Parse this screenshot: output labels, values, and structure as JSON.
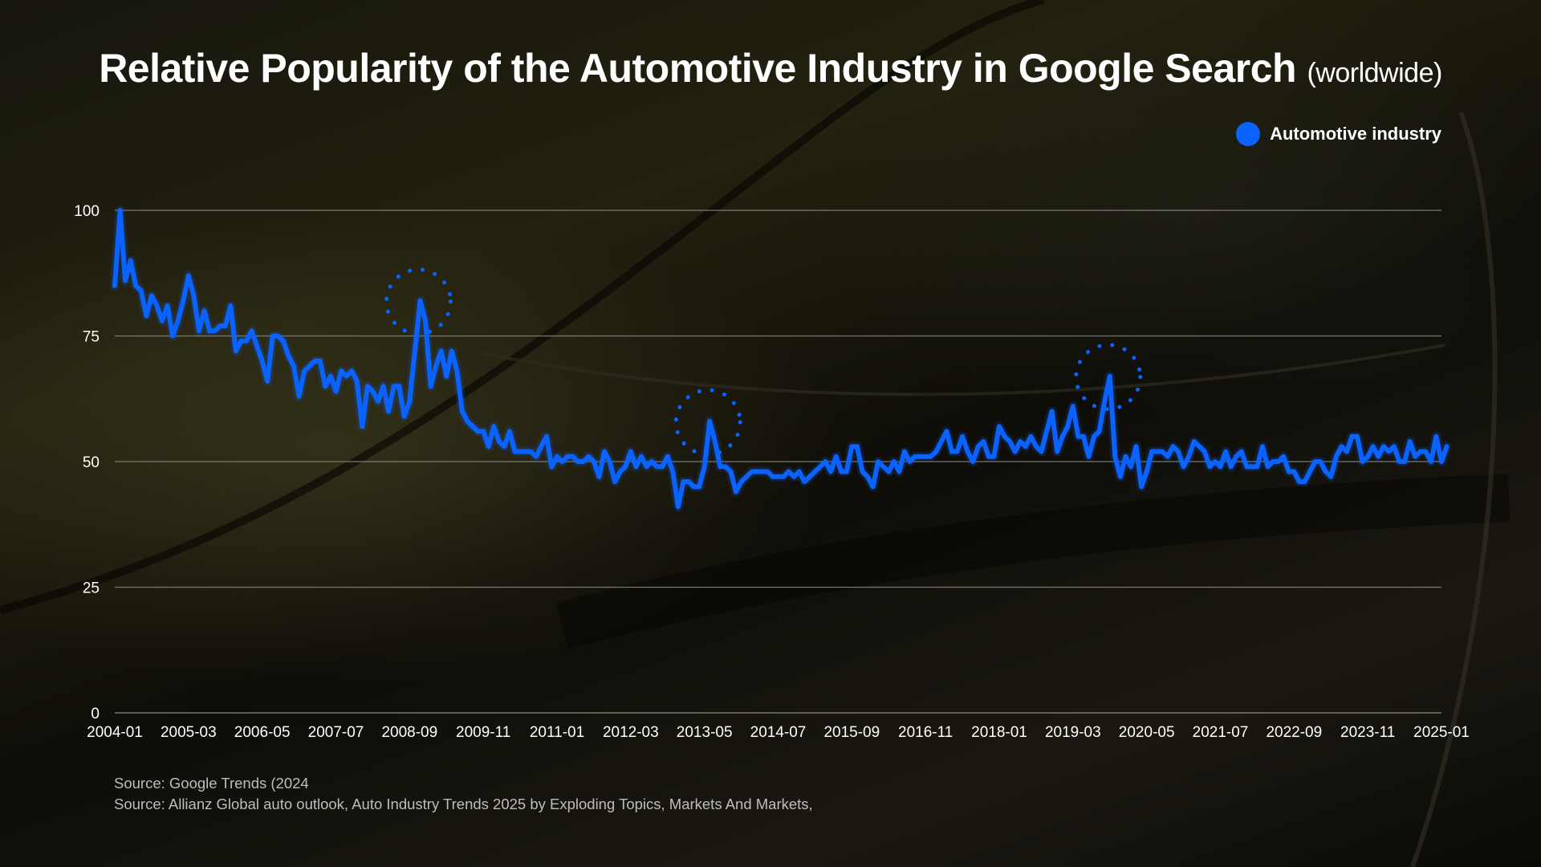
{
  "title": {
    "main": "Relative Popularity of the Automotive Industry in Google Search",
    "suffix": "(worldwide)"
  },
  "legend": {
    "label": "Automotive industry"
  },
  "colors": {
    "series": "#0a63ff",
    "grid": "#8a8a80",
    "text": "#ffffff"
  },
  "sources": [
    "Source: Google Trends (2024",
    "Source: Allianz Global auto outlook, Auto Industry Trends 2025 by Exploding Topics, Markets And Markets,"
  ],
  "chart_data": {
    "type": "line",
    "title": "Relative Popularity of the Automotive Industry in Google Search (worldwide)",
    "xlabel": "",
    "ylabel": "",
    "ylim": [
      0,
      100
    ],
    "grid": true,
    "legend_position": "top-right",
    "yticks": [
      0,
      25,
      50,
      75,
      100
    ],
    "x_ticks": [
      "2004-01",
      "2005-03",
      "2006-05",
      "2007-07",
      "2008-09",
      "2009-11",
      "2011-01",
      "2012-03",
      "2013-05",
      "2014-07",
      "2015-09",
      "2016-11",
      "2018-01",
      "2019-03",
      "2020-05",
      "2021-07",
      "2022-09",
      "2023-11",
      "2025-01"
    ],
    "x_range": [
      "2004-01",
      "2025-01"
    ],
    "series": [
      {
        "name": "Automotive industry",
        "points": [
          [
            "2004-01",
            85
          ],
          [
            "2004-02",
            100
          ],
          [
            "2004-03",
            86
          ],
          [
            "2004-04",
            90
          ],
          [
            "2004-05",
            85
          ],
          [
            "2004-06",
            84
          ],
          [
            "2004-07",
            79
          ],
          [
            "2004-08",
            83
          ],
          [
            "2004-09",
            81
          ],
          [
            "2004-10",
            78
          ],
          [
            "2004-11",
            81
          ],
          [
            "2004-12",
            75
          ],
          [
            "2005-01",
            78
          ],
          [
            "2005-02",
            82
          ],
          [
            "2005-03",
            87
          ],
          [
            "2005-04",
            83
          ],
          [
            "2005-05",
            76
          ],
          [
            "2005-06",
            80
          ],
          [
            "2005-07",
            76
          ],
          [
            "2005-08",
            76
          ],
          [
            "2005-09",
            77
          ],
          [
            "2005-10",
            77
          ],
          [
            "2005-11",
            81
          ],
          [
            "2005-12",
            72
          ],
          [
            "2006-01",
            74
          ],
          [
            "2006-02",
            74
          ],
          [
            "2006-03",
            76
          ],
          [
            "2006-04",
            73
          ],
          [
            "2006-05",
            70
          ],
          [
            "2006-06",
            66
          ],
          [
            "2006-07",
            75
          ],
          [
            "2006-08",
            75
          ],
          [
            "2006-09",
            74
          ],
          [
            "2006-10",
            71
          ],
          [
            "2006-11",
            69
          ],
          [
            "2006-12",
            63
          ],
          [
            "2007-01",
            68
          ],
          [
            "2007-02",
            69
          ],
          [
            "2007-03",
            70
          ],
          [
            "2007-04",
            70
          ],
          [
            "2007-05",
            65
          ],
          [
            "2007-06",
            67
          ],
          [
            "2007-07",
            64
          ],
          [
            "2007-08",
            68
          ],
          [
            "2007-09",
            67
          ],
          [
            "2007-10",
            68
          ],
          [
            "2007-11",
            66
          ],
          [
            "2007-12",
            57
          ],
          [
            "2008-01",
            65
          ],
          [
            "2008-02",
            64
          ],
          [
            "2008-03",
            62
          ],
          [
            "2008-04",
            65
          ],
          [
            "2008-05",
            60
          ],
          [
            "2008-06",
            65
          ],
          [
            "2008-07",
            65
          ],
          [
            "2008-08",
            59
          ],
          [
            "2008-09",
            62
          ],
          [
            "2008-10",
            72
          ],
          [
            "2008-11",
            82
          ],
          [
            "2008-12",
            78
          ],
          [
            "2009-01",
            65
          ],
          [
            "2009-02",
            69
          ],
          [
            "2009-03",
            72
          ],
          [
            "2009-04",
            67
          ],
          [
            "2009-05",
            72
          ],
          [
            "2009-06",
            68
          ],
          [
            "2009-07",
            60
          ],
          [
            "2009-08",
            58
          ],
          [
            "2009-09",
            57
          ],
          [
            "2009-10",
            56
          ],
          [
            "2009-11",
            56
          ],
          [
            "2009-12",
            53
          ],
          [
            "2010-01",
            57
          ],
          [
            "2010-02",
            54
          ],
          [
            "2010-03",
            53
          ],
          [
            "2010-04",
            56
          ],
          [
            "2010-05",
            52
          ],
          [
            "2010-06",
            52
          ],
          [
            "2010-07",
            52
          ],
          [
            "2010-08",
            52
          ],
          [
            "2010-09",
            51
          ],
          [
            "2010-10",
            53
          ],
          [
            "2010-11",
            55
          ],
          [
            "2010-12",
            49
          ],
          [
            "2011-01",
            51
          ],
          [
            "2011-02",
            50
          ],
          [
            "2011-03",
            51
          ],
          [
            "2011-04",
            51
          ],
          [
            "2011-05",
            50
          ],
          [
            "2011-06",
            50
          ],
          [
            "2011-07",
            51
          ],
          [
            "2011-08",
            50
          ],
          [
            "2011-09",
            47
          ],
          [
            "2011-10",
            52
          ],
          [
            "2011-11",
            50
          ],
          [
            "2011-12",
            46
          ],
          [
            "2012-01",
            48
          ],
          [
            "2012-02",
            49
          ],
          [
            "2012-03",
            52
          ],
          [
            "2012-04",
            49
          ],
          [
            "2012-05",
            51
          ],
          [
            "2012-06",
            49
          ],
          [
            "2012-07",
            50
          ],
          [
            "2012-08",
            49
          ],
          [
            "2012-09",
            49
          ],
          [
            "2012-10",
            51
          ],
          [
            "2012-11",
            48
          ],
          [
            "2012-12",
            41
          ],
          [
            "2013-01",
            46
          ],
          [
            "2013-02",
            46
          ],
          [
            "2013-03",
            45
          ],
          [
            "2013-04",
            45
          ],
          [
            "2013-05",
            49
          ],
          [
            "2013-06",
            58
          ],
          [
            "2013-07",
            54
          ],
          [
            "2013-08",
            49
          ],
          [
            "2013-09",
            49
          ],
          [
            "2013-10",
            48
          ],
          [
            "2013-11",
            44
          ],
          [
            "2013-12",
            46
          ],
          [
            "2014-01",
            47
          ],
          [
            "2014-02",
            48
          ],
          [
            "2014-03",
            48
          ],
          [
            "2014-04",
            48
          ],
          [
            "2014-05",
            48
          ],
          [
            "2014-06",
            47
          ],
          [
            "2014-07",
            47
          ],
          [
            "2014-08",
            47
          ],
          [
            "2014-09",
            48
          ],
          [
            "2014-10",
            47
          ],
          [
            "2014-11",
            48
          ],
          [
            "2014-12",
            46
          ],
          [
            "2015-01",
            47
          ],
          [
            "2015-02",
            48
          ],
          [
            "2015-03",
            49
          ],
          [
            "2015-04",
            50
          ],
          [
            "2015-05",
            48
          ],
          [
            "2015-06",
            51
          ],
          [
            "2015-07",
            48
          ],
          [
            "2015-08",
            48
          ],
          [
            "2015-09",
            53
          ],
          [
            "2015-10",
            53
          ],
          [
            "2015-11",
            48
          ],
          [
            "2015-12",
            47
          ],
          [
            "2016-01",
            45
          ],
          [
            "2016-02",
            50
          ],
          [
            "2016-03",
            49
          ],
          [
            "2016-04",
            48
          ],
          [
            "2016-05",
            50
          ],
          [
            "2016-06",
            48
          ],
          [
            "2016-07",
            52
          ],
          [
            "2016-08",
            50
          ],
          [
            "2016-09",
            51
          ],
          [
            "2016-10",
            51
          ],
          [
            "2016-11",
            51
          ],
          [
            "2016-12",
            51
          ],
          [
            "2017-01",
            52
          ],
          [
            "2017-02",
            54
          ],
          [
            "2017-03",
            56
          ],
          [
            "2017-04",
            52
          ],
          [
            "2017-05",
            52
          ],
          [
            "2017-06",
            55
          ],
          [
            "2017-07",
            52
          ],
          [
            "2017-08",
            50
          ],
          [
            "2017-09",
            53
          ],
          [
            "2017-10",
            54
          ],
          [
            "2017-11",
            51
          ],
          [
            "2017-12",
            51
          ],
          [
            "2018-01",
            57
          ],
          [
            "2018-02",
            55
          ],
          [
            "2018-03",
            54
          ],
          [
            "2018-04",
            52
          ],
          [
            "2018-05",
            54
          ],
          [
            "2018-06",
            53
          ],
          [
            "2018-07",
            55
          ],
          [
            "2018-08",
            53
          ],
          [
            "2018-09",
            52
          ],
          [
            "2018-10",
            56
          ],
          [
            "2018-11",
            60
          ],
          [
            "2018-12",
            52
          ],
          [
            "2019-01",
            55
          ],
          [
            "2019-02",
            57
          ],
          [
            "2019-03",
            61
          ],
          [
            "2019-04",
            55
          ],
          [
            "2019-05",
            55
          ],
          [
            "2019-06",
            51
          ],
          [
            "2019-07",
            55
          ],
          [
            "2019-08",
            56
          ],
          [
            "2019-09",
            62
          ],
          [
            "2019-10",
            67
          ],
          [
            "2019-11",
            51
          ],
          [
            "2019-12",
            47
          ],
          [
            "2020-01",
            51
          ],
          [
            "2020-02",
            49
          ],
          [
            "2020-03",
            53
          ],
          [
            "2020-04",
            45
          ],
          [
            "2020-05",
            48
          ],
          [
            "2020-06",
            52
          ],
          [
            "2020-07",
            52
          ],
          [
            "2020-08",
            52
          ],
          [
            "2020-09",
            51
          ],
          [
            "2020-10",
            53
          ],
          [
            "2020-11",
            52
          ],
          [
            "2020-12",
            49
          ],
          [
            "2021-01",
            51
          ],
          [
            "2021-02",
            54
          ],
          [
            "2021-03",
            53
          ],
          [
            "2021-04",
            52
          ],
          [
            "2021-05",
            49
          ],
          [
            "2021-06",
            50
          ],
          [
            "2021-07",
            49
          ],
          [
            "2021-08",
            52
          ],
          [
            "2021-09",
            49
          ],
          [
            "2021-10",
            51
          ],
          [
            "2021-11",
            52
          ],
          [
            "2021-12",
            49
          ],
          [
            "2022-01",
            49
          ],
          [
            "2022-02",
            49
          ],
          [
            "2022-03",
            53
          ],
          [
            "2022-04",
            49
          ],
          [
            "2022-05",
            50
          ],
          [
            "2022-06",
            50
          ],
          [
            "2022-07",
            51
          ],
          [
            "2022-08",
            48
          ],
          [
            "2022-09",
            48
          ],
          [
            "2022-10",
            46
          ],
          [
            "2022-11",
            46
          ],
          [
            "2022-12",
            48
          ],
          [
            "2023-01",
            50
          ],
          [
            "2023-02",
            50
          ],
          [
            "2023-03",
            48
          ],
          [
            "2023-04",
            47
          ],
          [
            "2023-05",
            51
          ],
          [
            "2023-06",
            53
          ],
          [
            "2023-07",
            52
          ],
          [
            "2023-08",
            55
          ],
          [
            "2023-09",
            55
          ],
          [
            "2023-10",
            50
          ],
          [
            "2023-11",
            51
          ],
          [
            "2023-12",
            53
          ],
          [
            "2024-01",
            51
          ],
          [
            "2024-02",
            53
          ],
          [
            "2024-03",
            52
          ],
          [
            "2024-04",
            53
          ],
          [
            "2024-05",
            50
          ],
          [
            "2024-06",
            50
          ],
          [
            "2024-07",
            54
          ],
          [
            "2024-08",
            51
          ],
          [
            "2024-09",
            52
          ],
          [
            "2024-10",
            52
          ],
          [
            "2024-11",
            50
          ],
          [
            "2024-12",
            55
          ],
          [
            "2025-01",
            50
          ],
          [
            "2025-02",
            53
          ]
        ]
      }
    ],
    "highlight_peaks": [
      "2008-11",
      "2013-06",
      "2019-10"
    ]
  }
}
